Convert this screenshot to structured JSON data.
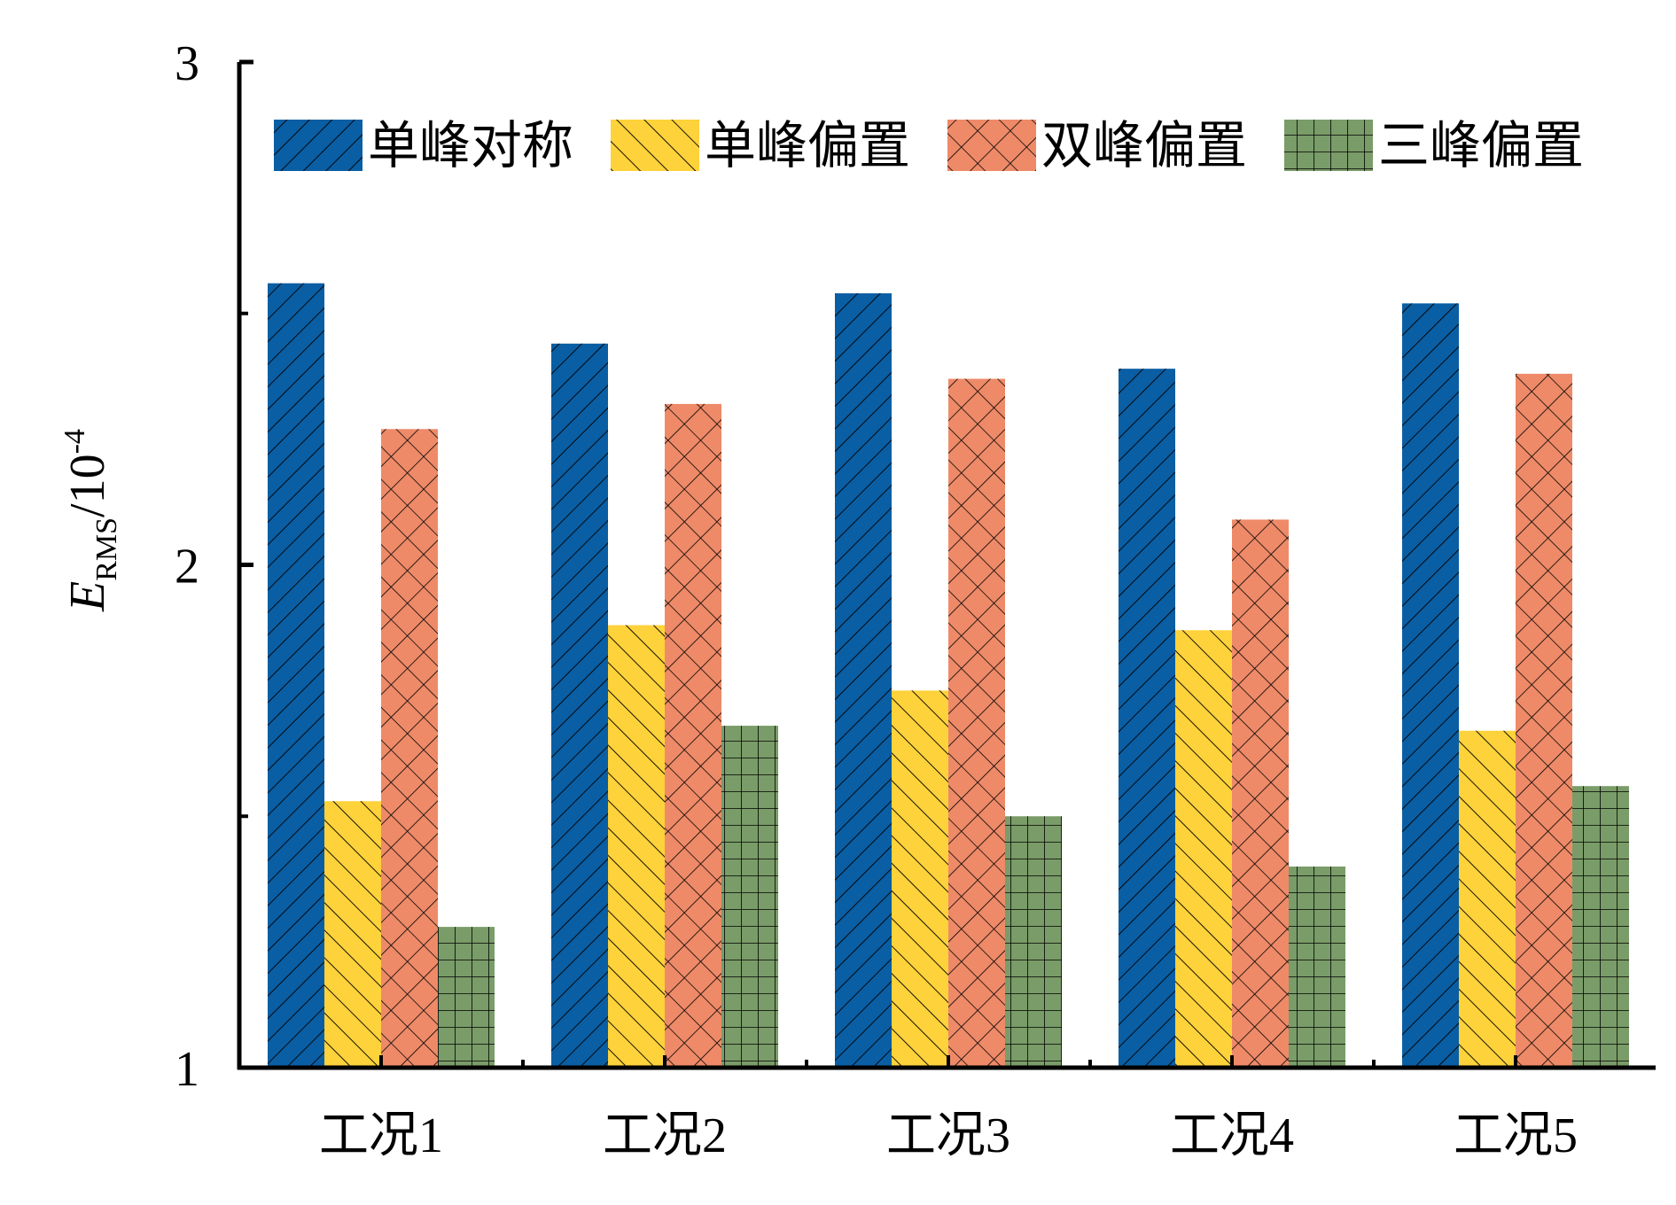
{
  "chart_data": {
    "type": "bar",
    "ylabel": {
      "main": "E",
      "subscript": "RMS",
      "rest": "/10",
      "superscript": "-4"
    },
    "xlabel": "",
    "ylim": [
      1,
      3
    ],
    "yticks": [
      1,
      2,
      3
    ],
    "categories": [
      "工况1",
      "工况2",
      "工况3",
      "工况4",
      "工况5"
    ],
    "series": [
      {
        "name": "单峰对称",
        "color": "#0a5ea3",
        "pattern": "diag-right",
        "values": [
          2.56,
          2.44,
          2.54,
          2.39,
          2.52
        ]
      },
      {
        "name": "单峰偏置",
        "color": "#fdd23a",
        "pattern": "diag-left",
        "values": [
          1.53,
          1.88,
          1.75,
          1.87,
          1.67
        ]
      },
      {
        "name": "双峰偏置",
        "color": "#ee8a68",
        "pattern": "cross-diag",
        "values": [
          2.27,
          2.32,
          2.37,
          2.09,
          2.38
        ]
      },
      {
        "name": "三峰偏置",
        "color": "#7a9c68",
        "pattern": "grid",
        "values": [
          1.28,
          1.68,
          1.5,
          1.4,
          1.56
        ]
      }
    ],
    "legend_position": "top",
    "grid": false
  }
}
